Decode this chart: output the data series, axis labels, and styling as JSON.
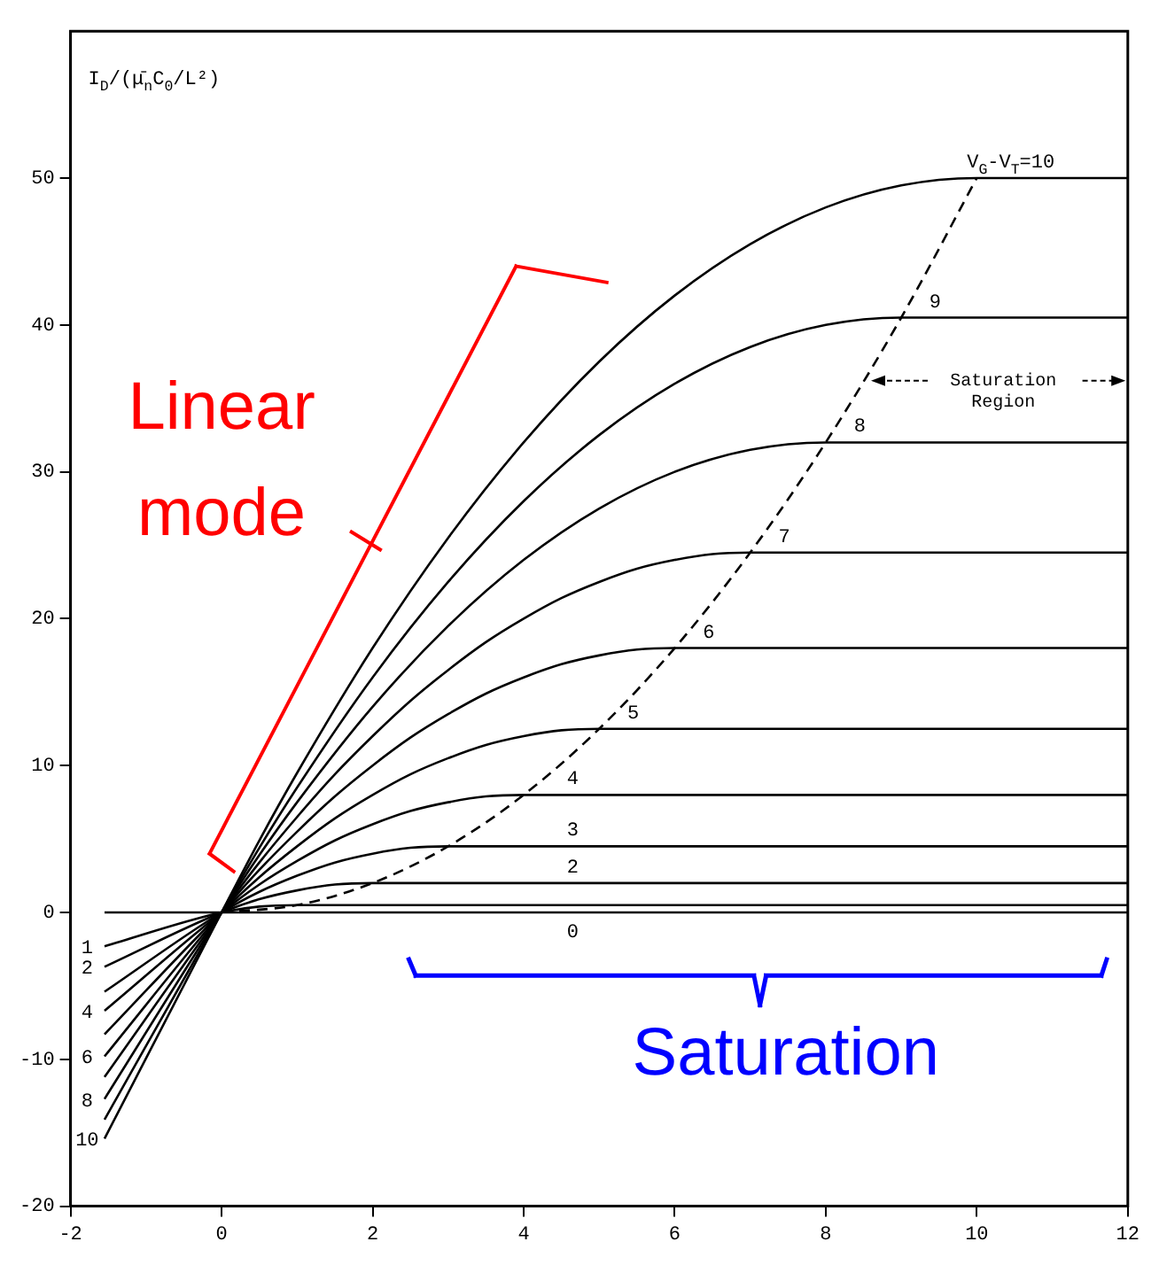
{
  "chart_data": {
    "type": "line",
    "ylabel": "I$_{D}$/(μ̄$_{n}$C$_{0}$/L²)",
    "xlim": [
      -2,
      12
    ],
    "xticks": [
      -2,
      0,
      2,
      4,
      6,
      8,
      10,
      12
    ],
    "ylim": [
      -20,
      60
    ],
    "yticks": [
      -20,
      -10,
      0,
      10,
      20,
      30,
      40,
      50
    ],
    "grid": false,
    "legend": "left",
    "series": [
      {
        "name": "0",
        "color": "#000000",
        "x": [
          -1.55,
          12
        ],
        "values": [
          0,
          0
        ]
      },
      {
        "name": "1",
        "color": "#000000",
        "x": [
          -1.55,
          0,
          0.5,
          1,
          12
        ],
        "values": [
          -2.3,
          0,
          0.4,
          0.5,
          0.5
        ]
      },
      {
        "name": "2",
        "color": "#000000",
        "x": [
          -1.55,
          0,
          0.5,
          1,
          1.5,
          2,
          12
        ],
        "values": [
          -3.7,
          0,
          0.9,
          1.5,
          1.9,
          2,
          2
        ]
      },
      {
        "name": "3",
        "color": "#000000",
        "x": [
          -1.55,
          0,
          0.5,
          1,
          1.5,
          2,
          2.5,
          3,
          12
        ],
        "values": [
          -5.4,
          0,
          1.4,
          2.5,
          3.4,
          4,
          4.4,
          4.5,
          4.5
        ]
      },
      {
        "name": "4",
        "color": "#000000",
        "x": [
          -1.55,
          0,
          0.5,
          1,
          1.5,
          2,
          2.5,
          3,
          3.5,
          4,
          12
        ],
        "values": [
          -6.7,
          0,
          1.9,
          3.5,
          4.9,
          6,
          6.9,
          7.5,
          7.9,
          8,
          8
        ]
      },
      {
        "name": "5",
        "color": "#000000",
        "x": [
          -1.55,
          0,
          0.5,
          1,
          1.5,
          2,
          2.5,
          3,
          3.5,
          4,
          4.5,
          5,
          12
        ],
        "values": [
          -8.3,
          0,
          2.4,
          4.5,
          6.4,
          8,
          9.4,
          10.5,
          11.4,
          12,
          12.4,
          12.5,
          12.5
        ]
      },
      {
        "name": "6",
        "color": "#000000",
        "x": [
          -1.55,
          0,
          0.5,
          1,
          1.5,
          2,
          2.5,
          3,
          3.5,
          4,
          4.5,
          5,
          5.5,
          6,
          12
        ],
        "values": [
          -9.8,
          0,
          2.9,
          5.5,
          7.9,
          10,
          11.9,
          13.5,
          14.9,
          16,
          16.9,
          17.5,
          17.9,
          18,
          18
        ]
      },
      {
        "name": "7",
        "color": "#000000",
        "x": [
          -1.55,
          0,
          0.5,
          1,
          1.5,
          2,
          2.5,
          3,
          3.5,
          4,
          4.5,
          5,
          5.5,
          6,
          6.5,
          7,
          12
        ],
        "values": [
          -11.2,
          0,
          3.4,
          6.5,
          9.4,
          12,
          14.4,
          16.5,
          18.4,
          20,
          21.4,
          22.5,
          23.4,
          24,
          24.4,
          24.5,
          24.5
        ]
      },
      {
        "name": "8",
        "color": "#000000",
        "x": [
          -1.55,
          0,
          0.5,
          1,
          2,
          3,
          4,
          5,
          6,
          7,
          8,
          12
        ],
        "values": [
          -12.7,
          0,
          3.9,
          7.5,
          14,
          19.5,
          24,
          27.5,
          30,
          31.5,
          32,
          32
        ]
      },
      {
        "name": "9",
        "color": "#000000",
        "x": [
          -1.55,
          0,
          0.5,
          1,
          2,
          3,
          4,
          5,
          6,
          7,
          8,
          9,
          12
        ],
        "values": [
          -14.1,
          0,
          4.4,
          8.5,
          16,
          22.5,
          28,
          32.5,
          36,
          38.5,
          40,
          40.5,
          40.5
        ]
      },
      {
        "name": "V$_{G}$-V$_{T}$=10",
        "color": "#000000",
        "x": [
          -1.55,
          0,
          0.5,
          1,
          2,
          3,
          4,
          5,
          6,
          7,
          8,
          9,
          10,
          12
        ],
        "values": [
          -15.4,
          0,
          4.9,
          9.5,
          18,
          25.5,
          32,
          37.5,
          42,
          45.5,
          48,
          49.5,
          50,
          50
        ]
      },
      {
        "color": "#000000",
        "line_style": "dashed",
        "x": [
          0,
          1,
          2,
          3,
          4,
          5,
          6,
          7,
          8,
          9,
          10
        ],
        "values": [
          0,
          0.5,
          2,
          4.5,
          8,
          12.5,
          18,
          24.5,
          32,
          40.5,
          50
        ]
      }
    ],
    "annotations": [
      "Linear mode",
      "Saturation",
      "Saturation Region",
      "2",
      "4",
      "6",
      "8",
      "10"
    ]
  }
}
